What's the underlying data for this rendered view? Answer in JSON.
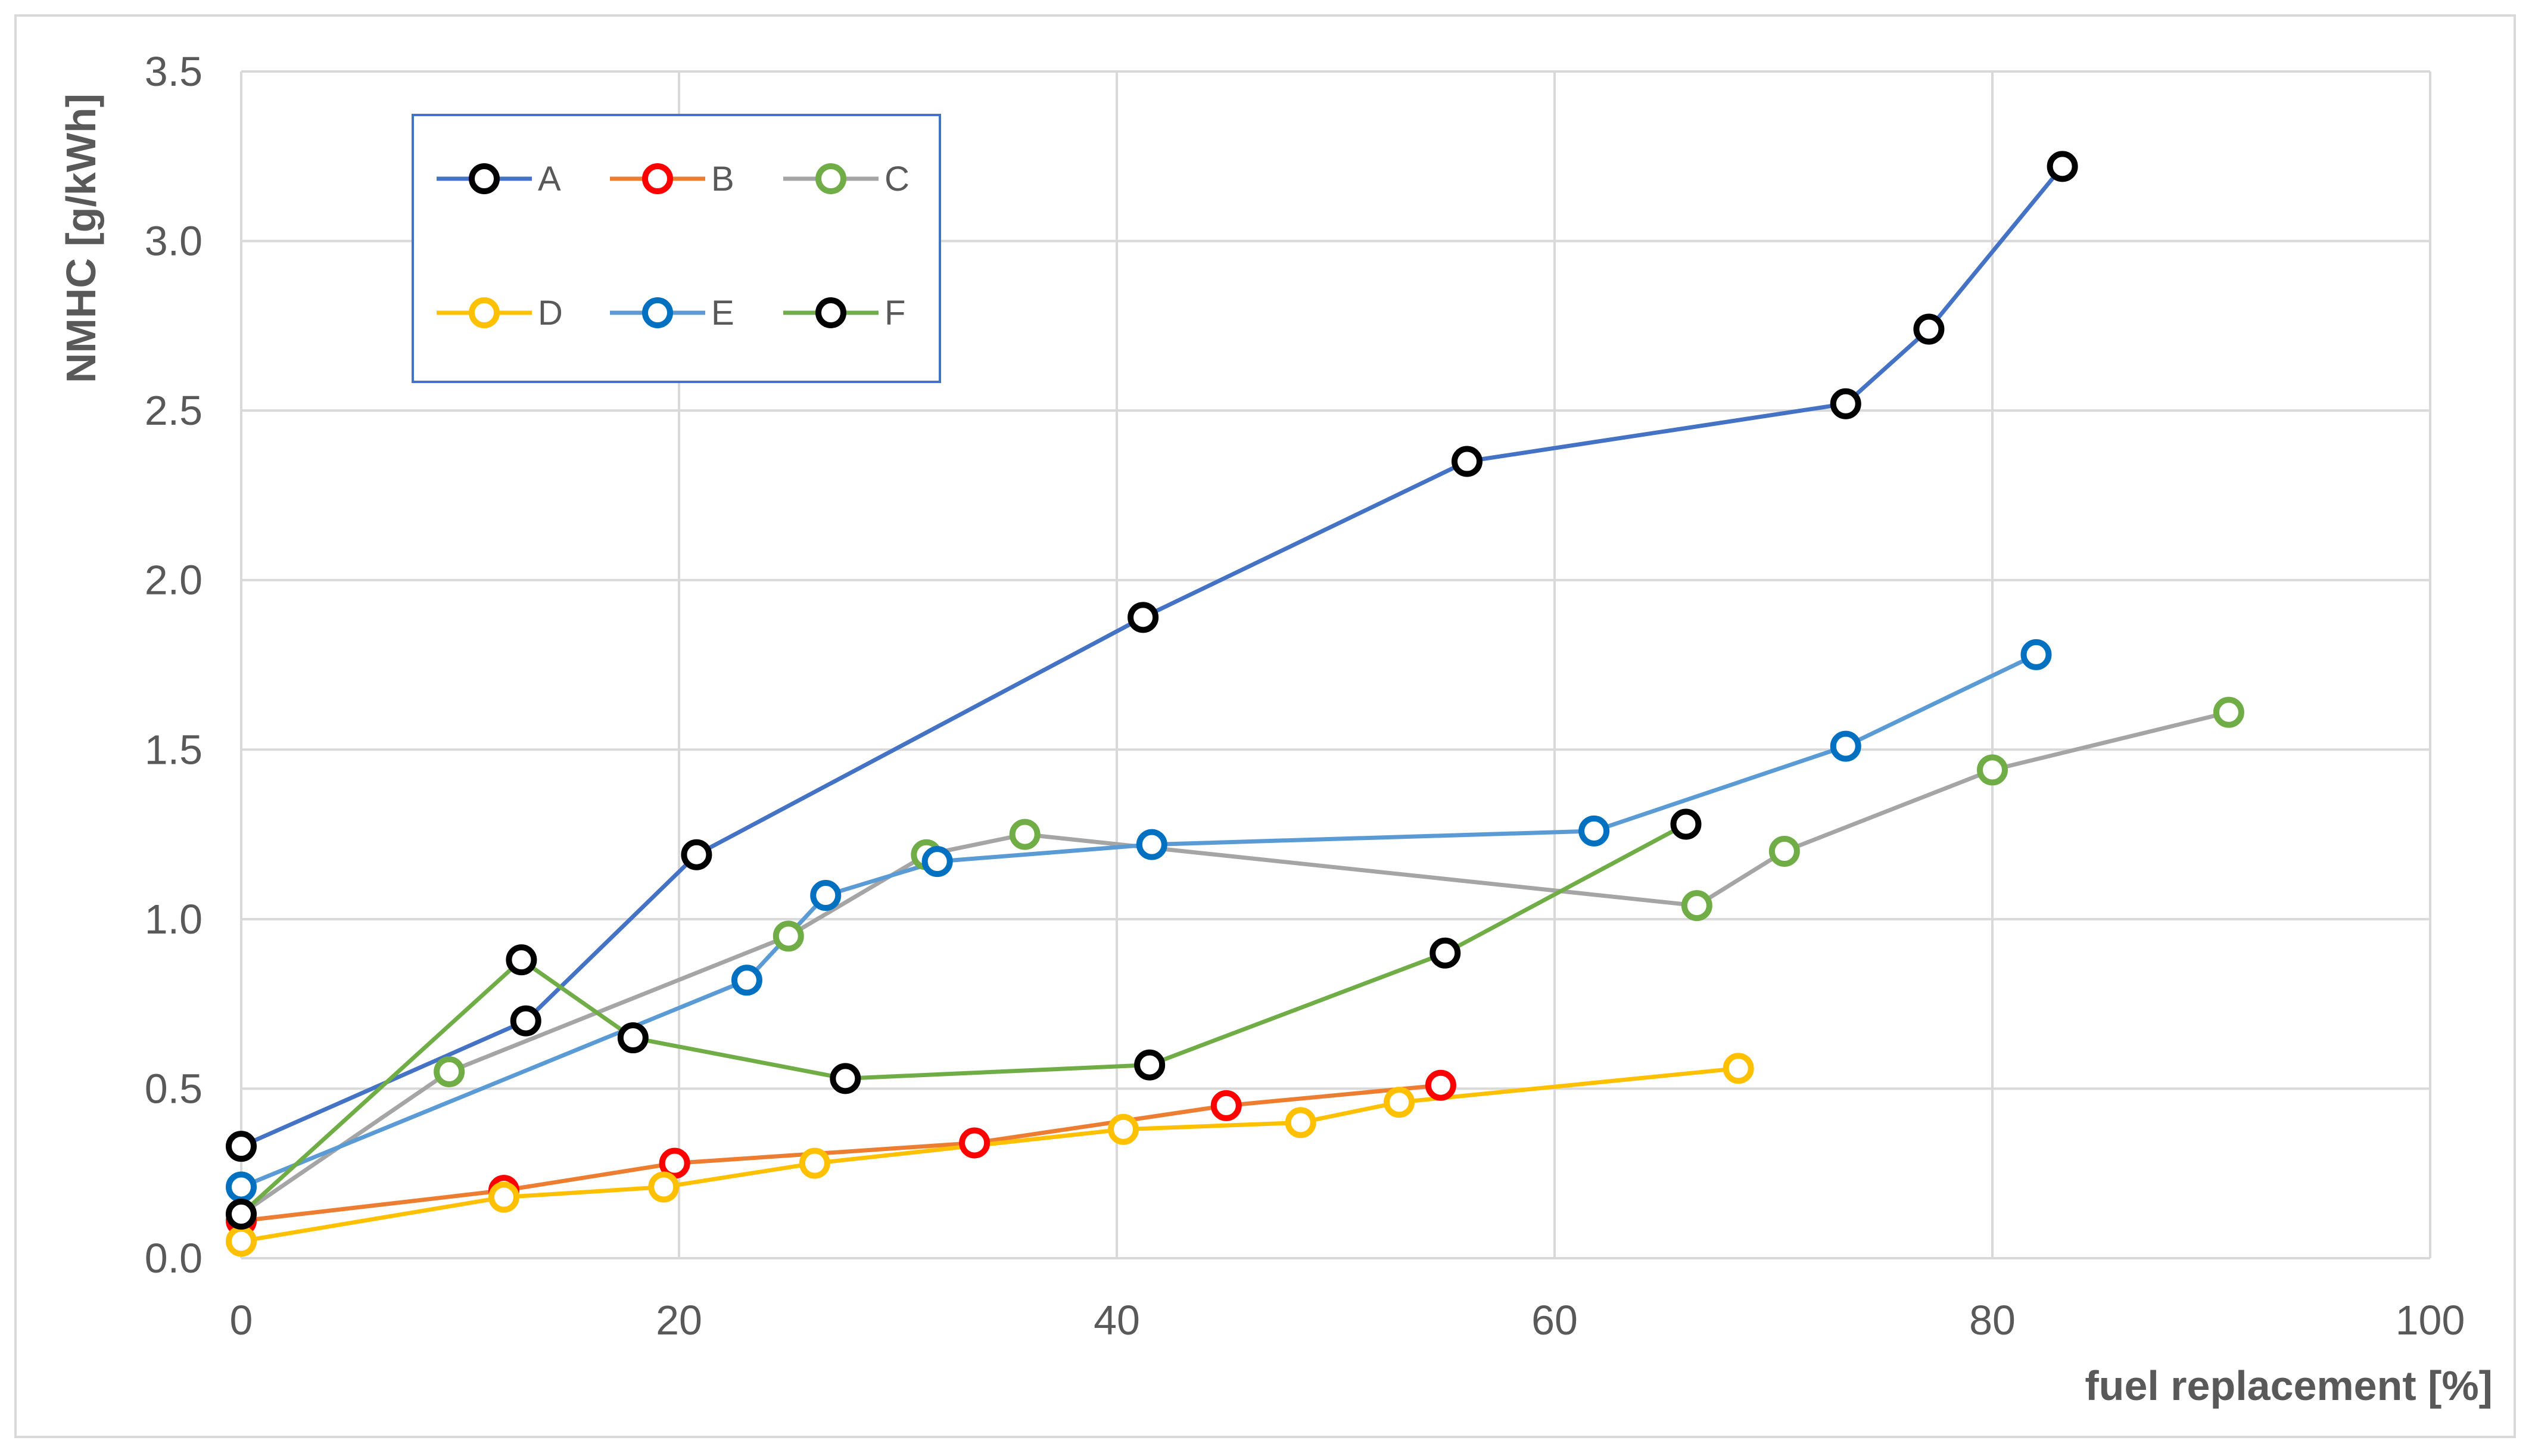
{
  "chart_data": {
    "type": "line",
    "title": "",
    "xlabel": "fuel replacement [%]",
    "ylabel": "NMHC [g/kWh]",
    "xlim": [
      0,
      100
    ],
    "ylim": [
      0,
      3.5
    ],
    "xticks": [
      0,
      20,
      40,
      60,
      80,
      100
    ],
    "yticks": [
      0.0,
      0.5,
      1.0,
      1.5,
      2.0,
      2.5,
      3.0,
      3.5
    ],
    "ytick_labels": [
      "0.0",
      "0.5",
      "1.0",
      "1.5",
      "2.0",
      "2.5",
      "3.0",
      "3.5"
    ],
    "grid": true,
    "legend_position": "top-left",
    "series": [
      {
        "name": "A",
        "line_color": "#4472c4",
        "marker_color": "#000000",
        "x": [
          0,
          13,
          20.8,
          41.2,
          56,
          73.3,
          77.1,
          83.2
        ],
        "y": [
          0.33,
          0.7,
          1.19,
          1.89,
          2.35,
          2.52,
          2.74,
          3.22
        ]
      },
      {
        "name": "B",
        "line_color": "#ed7d31",
        "marker_color": "#ff0000",
        "x": [
          0,
          12,
          19.8,
          33.5,
          45,
          54.8
        ],
        "y": [
          0.11,
          0.2,
          0.28,
          0.34,
          0.45,
          0.51
        ]
      },
      {
        "name": "C",
        "line_color": "#a5a5a5",
        "marker_color": "#70ad47",
        "x": [
          0,
          9.5,
          25,
          31.3,
          35.8,
          66.5,
          70.5,
          80,
          90.8
        ],
        "y": [
          0.13,
          0.55,
          0.95,
          1.19,
          1.25,
          1.04,
          1.2,
          1.44,
          1.61
        ]
      },
      {
        "name": "D",
        "line_color": "#ffc000",
        "marker_color": "#ffc000",
        "x": [
          0,
          12,
          19.3,
          26.2,
          40.3,
          48.4,
          52.9,
          68.4
        ],
        "y": [
          0.05,
          0.18,
          0.21,
          0.28,
          0.38,
          0.4,
          0.46,
          0.56
        ]
      },
      {
        "name": "E",
        "line_color": "#5b9bd5",
        "marker_color": "#0070c0",
        "x": [
          0,
          23.1,
          26.7,
          31.8,
          41.6,
          61.8,
          73.3,
          82
        ],
        "y": [
          0.21,
          0.82,
          1.07,
          1.17,
          1.22,
          1.26,
          1.51,
          1.78
        ]
      },
      {
        "name": "F",
        "line_color": "#70ad47",
        "marker_color": "#000000",
        "x": [
          0,
          12.8,
          17.9,
          27.6,
          41.5,
          55,
          66
        ],
        "y": [
          0.13,
          0.88,
          0.65,
          0.53,
          0.57,
          0.9,
          1.28
        ]
      }
    ]
  },
  "colors": {
    "grid": "#d9d9d9",
    "legend_border": "#4472c4",
    "axis_text": "#595959"
  }
}
